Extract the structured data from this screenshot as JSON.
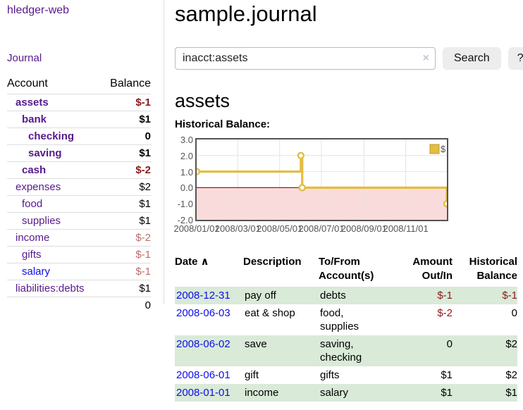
{
  "app": {
    "brand": "hledger-web",
    "nav": {
      "journal": "Journal"
    }
  },
  "colors": {
    "link_purple": "#551a8b",
    "link_blue": "#0d0deb",
    "negative_dark": "#8b1a1a",
    "negative_soft": "#bd6c6c",
    "row_green": "#d9ead8"
  },
  "sidebar": {
    "header": {
      "account": "Account",
      "balance": "Balance"
    },
    "accounts": [
      {
        "name": "assets",
        "balance": "$-1",
        "depth": 1,
        "bold": true,
        "negative": true,
        "unvisited": false
      },
      {
        "name": "bank",
        "balance": "$1",
        "depth": 2,
        "bold": true,
        "negative": false,
        "unvisited": false
      },
      {
        "name": "checking",
        "balance": "0",
        "depth": 3,
        "bold": true,
        "negative": false,
        "unvisited": false
      },
      {
        "name": "saving",
        "balance": "$1",
        "depth": 3,
        "bold": true,
        "negative": false,
        "unvisited": false
      },
      {
        "name": "cash",
        "balance": "$-2",
        "depth": 2,
        "bold": true,
        "negative": true,
        "unvisited": false
      },
      {
        "name": "expenses",
        "balance": "$2",
        "depth": 1,
        "bold": false,
        "negative": false,
        "unvisited": false
      },
      {
        "name": "food",
        "balance": "$1",
        "depth": 2,
        "bold": false,
        "negative": false,
        "unvisited": false
      },
      {
        "name": "supplies",
        "balance": "$1",
        "depth": 2,
        "bold": false,
        "negative": false,
        "unvisited": false
      },
      {
        "name": "income",
        "balance": "$-2",
        "depth": 1,
        "bold": false,
        "negative": true,
        "unvisited": false
      },
      {
        "name": "gifts",
        "balance": "$-1",
        "depth": 2,
        "bold": false,
        "negative": true,
        "unvisited": false
      },
      {
        "name": "salary",
        "balance": "$-1",
        "depth": 2,
        "bold": false,
        "negative": true,
        "unvisited": true
      },
      {
        "name": "liabilities:debts",
        "balance": "$1",
        "depth": 1,
        "bold": false,
        "negative": false,
        "unvisited": false
      }
    ],
    "total": "0"
  },
  "header": {
    "title": "sample.journal"
  },
  "search": {
    "value": "inacct:assets",
    "clear_icon": "×",
    "button_label": "Search",
    "help_label": "?"
  },
  "register": {
    "heading": "assets",
    "chart_label": "Historical Balance:"
  },
  "chart_data": {
    "type": "line",
    "title": "Historical Balance",
    "step": true,
    "xlim_days": [
      0,
      365
    ],
    "ylim": [
      -2,
      3
    ],
    "y_ticks": [
      {
        "label": "3.0",
        "value": 3
      },
      {
        "label": "2.0",
        "value": 2
      },
      {
        "label": "1.0",
        "value": 1
      },
      {
        "label": "0.0",
        "value": 0
      },
      {
        "label": "-1.0",
        "value": -1
      },
      {
        "label": "-2.0",
        "value": -2
      }
    ],
    "x_ticks": [
      {
        "label": "2008/01/01",
        "day": 0
      },
      {
        "label": "2008/03/01",
        "day": 60
      },
      {
        "label": "2008/05/01",
        "day": 121
      },
      {
        "label": "2008/07/01",
        "day": 182
      },
      {
        "label": "2008/09/01",
        "day": 244
      },
      {
        "label": "2008/11/01",
        "day": 305
      }
    ],
    "series": [
      {
        "name": "$",
        "color": "#e4bd43",
        "marker_fill": "#ffffff",
        "points": [
          {
            "date": "2008-01-01",
            "day": 0,
            "value": 1
          },
          {
            "date": "2008-06-01",
            "day": 152,
            "value": 2
          },
          {
            "date": "2008-06-03",
            "day": 154,
            "value": 0
          },
          {
            "date": "2008-12-31",
            "day": 365,
            "value": -1
          }
        ]
      }
    ],
    "legend": {
      "position": "top-right",
      "entries": [
        {
          "label": "$",
          "swatch_color": "#e4bd43",
          "swatch_border": "#bd9a26"
        }
      ]
    },
    "grid": true,
    "grid_color": "#e4e4e4",
    "frame_color": "#545454",
    "zero_line_color": "#8f1d1d",
    "negative_region_color": "#fadbdb"
  },
  "transactions": {
    "columns": [
      {
        "label": "Date",
        "align": "left",
        "sorted": "asc"
      },
      {
        "label": "Description",
        "align": "left"
      },
      {
        "label": "To/From Account(s)",
        "align": "left"
      },
      {
        "label": "Amount Out/In",
        "align": "right"
      },
      {
        "label": "Historical Balance",
        "align": "right"
      }
    ],
    "sort_icon": "∧",
    "rows": [
      {
        "date": "2008-12-31",
        "description": "pay off",
        "accounts": "debts",
        "amount": "$-1",
        "amount_negative": true,
        "balance": "$-1",
        "balance_negative": true
      },
      {
        "date": "2008-06-03",
        "description": "eat & shop",
        "accounts": "food, supplies",
        "amount": "$-2",
        "amount_negative": true,
        "balance": "0",
        "balance_negative": false
      },
      {
        "date": "2008-06-02",
        "description": "save",
        "accounts": "saving, checking",
        "amount": "0",
        "amount_negative": false,
        "balance": "$2",
        "balance_negative": false
      },
      {
        "date": "2008-06-01",
        "description": "gift",
        "accounts": "gifts",
        "amount": "$1",
        "amount_negative": false,
        "balance": "$2",
        "balance_negative": false
      },
      {
        "date": "2008-01-01",
        "description": "income",
        "accounts": "salary",
        "amount": "$1",
        "amount_negative": false,
        "balance": "$1",
        "balance_negative": false
      }
    ]
  }
}
